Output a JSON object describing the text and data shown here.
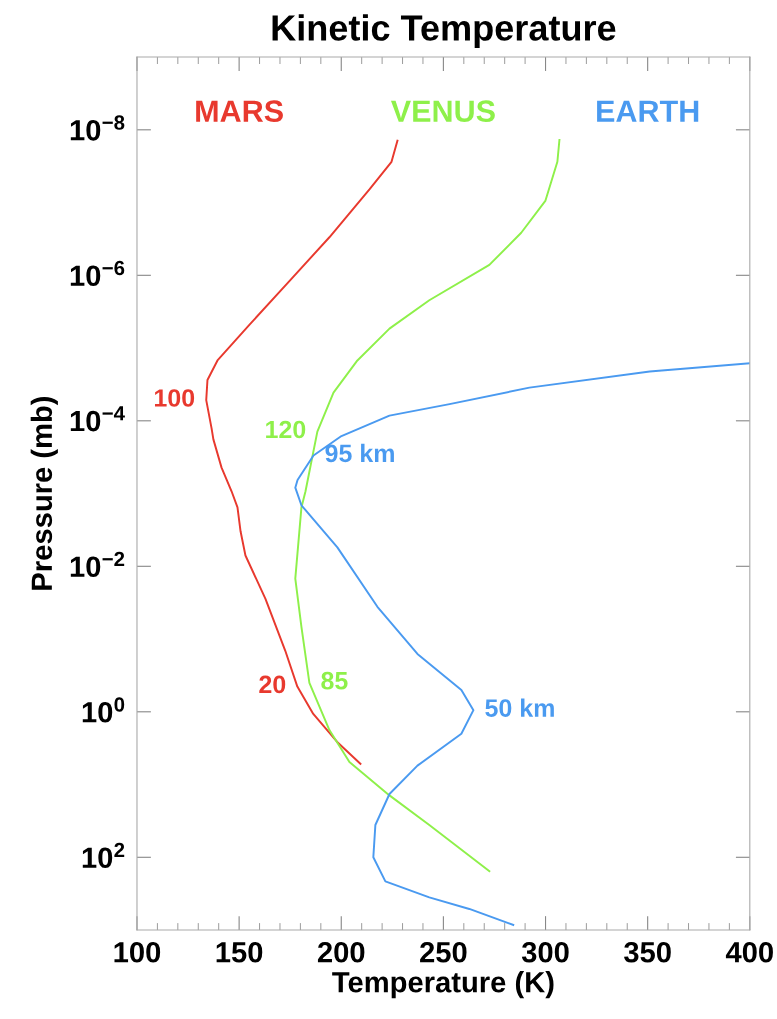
{
  "chart_data": {
    "type": "line",
    "title": "Kinetic Temperature",
    "xlabel": "Temperature (K)",
    "ylabel": "Pressure (mb)",
    "xlim": [
      100,
      400
    ],
    "xticks": [
      100,
      150,
      200,
      250,
      300,
      350,
      400
    ],
    "ylim": [
      1000,
      1e-09
    ],
    "log": "y",
    "yticks": [
      {
        "value": 1e-08,
        "label": "10$^{−8}$"
      },
      {
        "value": 1e-06,
        "label": "10$^{−6}$"
      },
      {
        "value": 0.0001,
        "label": "10$^{−4}$"
      },
      {
        "value": 0.01,
        "label": "10$^{−2}$"
      },
      {
        "value": 1,
        "label": "10$^{0}$"
      },
      {
        "value": 100,
        "label": "10$^{2}$"
      }
    ],
    "grid": false,
    "legend": false,
    "marker": "none",
    "line_style": "solid",
    "series": [
      {
        "name": "MARS",
        "color": "#e8392e",
        "x": [
          227.5,
          224.6,
          213.8,
          194.2,
          174.6,
          155,
          139.4,
          134.5,
          133.9,
          136.5,
          137.4,
          141.4,
          146.3,
          149.2,
          150.7,
          153.1,
          162.9,
          172.6,
          178.5,
          186.3,
          198,
          209.4
        ],
        "values": [
          1.41e-08,
          2.75e-08,
          6.6e-08,
          3e-07,
          1.2e-06,
          4.8e-06,
          1.48e-05,
          2.75e-05,
          5.2e-05,
          0.000126,
          0.00018,
          0.00044,
          0.00093,
          0.00155,
          0.0033,
          0.0071,
          0.028,
          0.145,
          0.45,
          1.07,
          2.6,
          5.2
        ]
      },
      {
        "name": "VENUS",
        "color": "#8ef04a",
        "x": [
          306.8,
          305.8,
          299.9,
          288.1,
          272.5,
          243.1,
          223.6,
          207.9,
          196.2,
          188.3,
          182.5,
          180.5,
          177.5,
          180.5,
          184.4,
          194.2,
          204,
          223.6,
          243.1,
          272.5
        ],
        "values": [
          1.38e-08,
          2.75e-08,
          9.5e-08,
          2.6e-07,
          7.2e-07,
          2.2e-06,
          5.4e-06,
          1.48e-05,
          4.1e-05,
          0.000141,
          0.00093,
          0.00155,
          0.0148,
          0.068,
          0.4,
          1.78,
          4.9,
          14.1,
          36,
          155
        ]
      },
      {
        "name": "EARTH",
        "color": "#4a9af0",
        "x": [
          400,
          351,
          292.1,
          253,
          223.6,
          200.1,
          186.4,
          178.6,
          177.5,
          180.5,
          198.1,
          217.7,
          237.3,
          258.8,
          264.7,
          258.8,
          237.3,
          223.6,
          216.7,
          215.7,
          221.6,
          243.1,
          262.7,
          284.2
        ],
        "values": [
          1.62e-05,
          2.1e-05,
          3.5e-05,
          5.9e-05,
          8.5e-05,
          0.000162,
          0.0003,
          0.00065,
          0.00083,
          0.00145,
          0.0055,
          0.036,
          0.16,
          0.5,
          0.95,
          2.0,
          5.5,
          13.5,
          36,
          100,
          214,
          355,
          513,
          851
        ]
      }
    ],
    "annotations": [
      {
        "text": "100",
        "x": 133.9,
        "y": 5.2e-05
      },
      {
        "text": "120",
        "x": 188.3,
        "y": 0.000141
      },
      {
        "text": "95 km",
        "x": 186.4,
        "y": 0.0003
      },
      {
        "text": "20",
        "x": 178.5,
        "y": 0.45
      },
      {
        "text": "85",
        "x": 184.4,
        "y": 0.4
      },
      {
        "text": "50 km",
        "x": 264.7,
        "y": 0.95
      }
    ]
  }
}
